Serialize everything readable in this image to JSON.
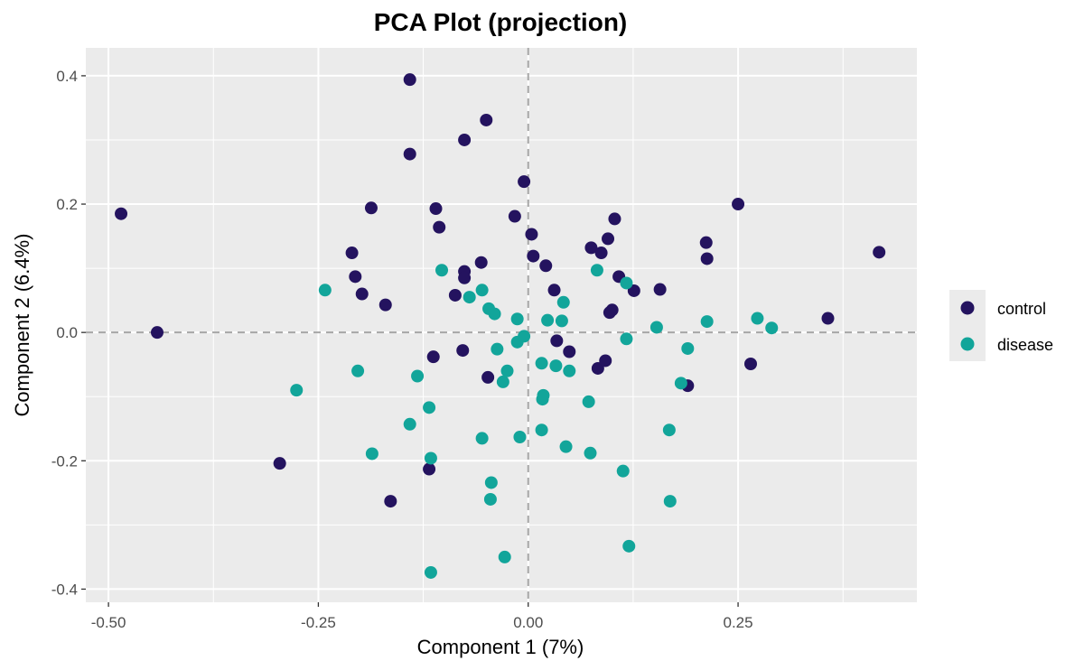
{
  "chart_data": {
    "type": "scatter",
    "title": "PCA Plot (projection)",
    "xlabel": "Component 1 (7%)",
    "ylabel": "Component 2 (6.4%)",
    "xlim": [
      -0.527,
      0.463
    ],
    "ylim": [
      -0.4205,
      0.4435
    ],
    "x_ticks": [
      -0.5,
      -0.25,
      0.0,
      0.25
    ],
    "x_tick_labels": [
      "-0.50",
      "-0.25",
      "0.00",
      "0.25"
    ],
    "x_minor_ticks": [
      -0.375,
      -0.125,
      0.125,
      0.375
    ],
    "y_ticks": [
      -0.4,
      -0.2,
      0.0,
      0.2,
      0.4
    ],
    "y_tick_labels": [
      "-0.4",
      "-0.2",
      "0.0",
      "0.2",
      "0.4"
    ],
    "y_minor_ticks": [
      -0.3,
      -0.1,
      0.1,
      0.3
    ],
    "reference_lines": {
      "x": 0.0,
      "y": 0.0,
      "style": "dashed"
    },
    "grid": true,
    "legend": {
      "position": "right",
      "entries": [
        "control",
        "disease"
      ]
    },
    "colors": {
      "control": "#24135f",
      "disease": "#12a59a",
      "panel": "#ebebeb",
      "grid": "#ffffff",
      "refline": "#a6a6a6"
    },
    "series": [
      {
        "name": "control",
        "points": [
          [
            -0.485,
            0.185
          ],
          [
            -0.442,
            0.0
          ],
          [
            -0.296,
            -0.204
          ],
          [
            -0.21,
            0.124
          ],
          [
            -0.206,
            0.087
          ],
          [
            -0.198,
            0.06
          ],
          [
            -0.187,
            0.194
          ],
          [
            -0.17,
            0.043
          ],
          [
            -0.164,
            -0.263
          ],
          [
            -0.141,
            0.394
          ],
          [
            -0.141,
            0.278
          ],
          [
            -0.118,
            -0.213
          ],
          [
            -0.113,
            -0.038
          ],
          [
            -0.11,
            0.193
          ],
          [
            -0.106,
            0.164
          ],
          [
            -0.087,
            0.058
          ],
          [
            -0.078,
            -0.028
          ],
          [
            -0.076,
            0.095
          ],
          [
            -0.076,
            0.085
          ],
          [
            -0.076,
            0.3
          ],
          [
            -0.056,
            0.109
          ],
          [
            -0.05,
            0.331
          ],
          [
            -0.048,
            -0.07
          ],
          [
            -0.016,
            0.181
          ],
          [
            -0.005,
            0.235
          ],
          [
            0.004,
            0.153
          ],
          [
            0.006,
            0.119
          ],
          [
            0.021,
            0.104
          ],
          [
            0.031,
            0.066
          ],
          [
            0.034,
            -0.013
          ],
          [
            0.049,
            -0.03
          ],
          [
            0.075,
            0.132
          ],
          [
            0.083,
            -0.056
          ],
          [
            0.087,
            0.124
          ],
          [
            0.092,
            -0.044
          ],
          [
            0.095,
            0.146
          ],
          [
            0.097,
            0.031
          ],
          [
            0.1,
            0.035
          ],
          [
            0.103,
            0.177
          ],
          [
            0.108,
            0.087
          ],
          [
            0.126,
            0.065
          ],
          [
            0.157,
            0.067
          ],
          [
            0.19,
            -0.083
          ],
          [
            0.212,
            0.14
          ],
          [
            0.213,
            0.115
          ],
          [
            0.25,
            0.2
          ],
          [
            0.265,
            -0.049
          ],
          [
            0.357,
            0.022
          ],
          [
            0.418,
            0.125
          ]
        ]
      },
      {
        "name": "disease",
        "points": [
          [
            -0.242,
            0.066
          ],
          [
            -0.276,
            -0.09
          ],
          [
            -0.203,
            -0.06
          ],
          [
            -0.186,
            -0.189
          ],
          [
            -0.141,
            -0.143
          ],
          [
            -0.132,
            -0.068
          ],
          [
            -0.118,
            -0.117
          ],
          [
            -0.116,
            -0.196
          ],
          [
            -0.116,
            -0.374
          ],
          [
            -0.103,
            0.097
          ],
          [
            -0.07,
            0.055
          ],
          [
            -0.055,
            0.066
          ],
          [
            -0.055,
            -0.165
          ],
          [
            -0.047,
            0.037
          ],
          [
            -0.045,
            -0.26
          ],
          [
            -0.044,
            -0.234
          ],
          [
            -0.04,
            0.029
          ],
          [
            -0.037,
            -0.026
          ],
          [
            -0.03,
            -0.077
          ],
          [
            -0.028,
            -0.35
          ],
          [
            -0.025,
            -0.06
          ],
          [
            -0.013,
            -0.015
          ],
          [
            -0.013,
            0.021
          ],
          [
            -0.01,
            -0.163
          ],
          [
            -0.005,
            -0.006
          ],
          [
            0.016,
            -0.048
          ],
          [
            0.016,
            -0.152
          ],
          [
            0.017,
            -0.104
          ],
          [
            0.018,
            -0.098
          ],
          [
            0.023,
            0.019
          ],
          [
            0.033,
            -0.052
          ],
          [
            0.04,
            0.018
          ],
          [
            0.042,
            0.047
          ],
          [
            0.045,
            -0.178
          ],
          [
            0.049,
            -0.06
          ],
          [
            0.072,
            -0.108
          ],
          [
            0.074,
            -0.188
          ],
          [
            0.082,
            0.097
          ],
          [
            0.113,
            -0.216
          ],
          [
            0.117,
            -0.01
          ],
          [
            0.117,
            0.077
          ],
          [
            0.12,
            -0.333
          ],
          [
            0.153,
            0.008
          ],
          [
            0.168,
            -0.152
          ],
          [
            0.169,
            -0.263
          ],
          [
            0.182,
            -0.079
          ],
          [
            0.19,
            -0.025
          ],
          [
            0.213,
            0.017
          ],
          [
            0.273,
            0.022
          ],
          [
            0.29,
            0.007
          ]
        ]
      }
    ]
  }
}
